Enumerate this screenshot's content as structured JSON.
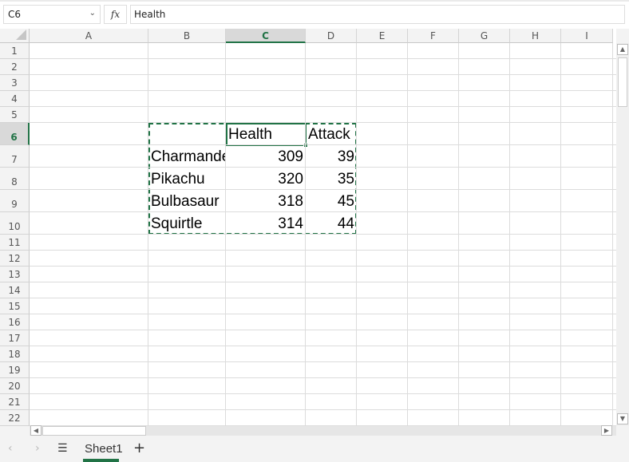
{
  "formula_bar": {
    "name_box": "C6",
    "fx_label": "fx",
    "formula": "Health"
  },
  "columns": [
    "A",
    "B",
    "C",
    "D",
    "E",
    "F",
    "G",
    "H",
    "I"
  ],
  "selected_column": "C",
  "rows": [
    "1",
    "2",
    "3",
    "4",
    "5",
    "6",
    "7",
    "8",
    "9",
    "10",
    "11",
    "12",
    "13",
    "14",
    "15",
    "16",
    "17",
    "18",
    "19",
    "20",
    "21",
    "22"
  ],
  "selected_row": "6",
  "cells": [
    {
      "ref": "C6",
      "value": "Health",
      "type": "text"
    },
    {
      "ref": "D6",
      "value": "Attack",
      "type": "text"
    },
    {
      "ref": "B7",
      "value": "Charmander",
      "type": "text"
    },
    {
      "ref": "C7",
      "value": "309",
      "type": "num"
    },
    {
      "ref": "D7",
      "value": "39",
      "type": "num"
    },
    {
      "ref": "B8",
      "value": "Pikachu",
      "type": "text"
    },
    {
      "ref": "C8",
      "value": "320",
      "type": "num"
    },
    {
      "ref": "D8",
      "value": "35",
      "type": "num"
    },
    {
      "ref": "B9",
      "value": "Bulbasaur",
      "type": "text"
    },
    {
      "ref": "C9",
      "value": "318",
      "type": "num"
    },
    {
      "ref": "D9",
      "value": "45",
      "type": "num"
    },
    {
      "ref": "B10",
      "value": "Squirtle",
      "type": "text"
    },
    {
      "ref": "C10",
      "value": "314",
      "type": "num"
    },
    {
      "ref": "D10",
      "value": "44",
      "type": "num"
    }
  ],
  "sheet_tabs": {
    "prev": "‹",
    "next": "›",
    "menu": "☰",
    "sheets": [
      "Sheet1"
    ],
    "add": "+"
  },
  "accent_color": "#217346"
}
